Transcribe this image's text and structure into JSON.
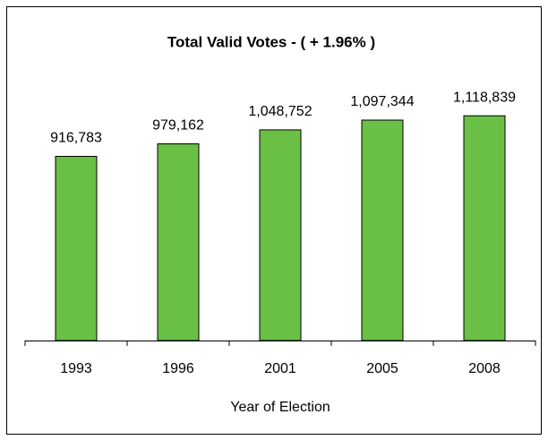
{
  "chart_data": {
    "type": "bar",
    "title": "Total Valid Votes - ( + 1.96% )",
    "x_label": "Year of Election",
    "categories": [
      "1993",
      "1996",
      "2001",
      "2005",
      "2008"
    ],
    "values": [
      916783,
      979162,
      1048752,
      1097344,
      1118839
    ],
    "value_labels": [
      "916,783",
      "979,162",
      "1,048,752",
      "1,097,344",
      "1,118,839"
    ],
    "color": "#6abf45",
    "ylim": [
      0,
      1200000
    ]
  }
}
